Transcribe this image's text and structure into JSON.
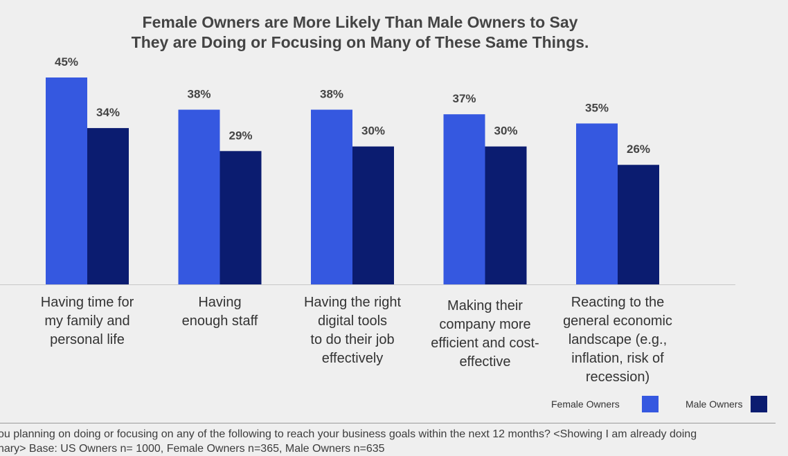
{
  "chart_data": {
    "type": "bar",
    "title_lines": [
      "Female Owners are More Likely Than Male Owners to Say",
      "They are Doing or Focusing on Many of These Same Things."
    ],
    "categories": [
      [
        "Having time for",
        "my family and",
        "personal life"
      ],
      [
        "Having",
        "enough staff"
      ],
      [
        "Having the right",
        "digital tools",
        "to do their job",
        "effectively"
      ],
      [
        "Making their",
        "company more",
        "efficient and cost-",
        "effective"
      ],
      [
        "Reacting to the",
        "general economic",
        "landscape (e.g.,",
        "inflation, risk of",
        "recession)"
      ]
    ],
    "series": [
      {
        "name": "Female Owners",
        "color": "#3558e0",
        "values": [
          45,
          38,
          38,
          37,
          35
        ],
        "labels": [
          "45%",
          "38%",
          "38%",
          "37%",
          "35%"
        ]
      },
      {
        "name": "Male Owners",
        "color": "#0b1c70",
        "values": [
          34,
          29,
          30,
          30,
          26
        ],
        "labels": [
          "34%",
          "29%",
          "30%",
          "30%",
          "26%"
        ]
      }
    ],
    "value_unit": "%",
    "ylim": [
      0,
      45
    ],
    "grid": false,
    "legend_position": "bottom-right"
  },
  "legend": {
    "female_label": "Female Owners",
    "male_label": "Male Owners",
    "female_color": "#3558e0",
    "male_color": "#0b1c70"
  },
  "footnote": {
    "line1": "ou planning on doing or focusing on any of the following to reach your business goals within the next 12 months? <Showing I am already doing",
    "line2": "nary> Base: US Owners n= 1000, Female Owners n=365, Male Owners n=635"
  }
}
